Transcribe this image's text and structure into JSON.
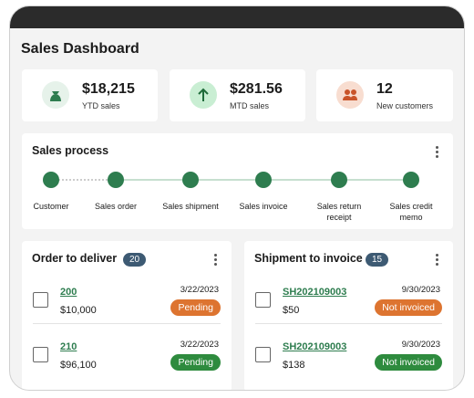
{
  "header": {
    "title": "Sales Dashboard"
  },
  "kpis": [
    {
      "value": "$18,215",
      "label": "YTD sales"
    },
    {
      "value": "$281.56",
      "label": "MTD sales"
    },
    {
      "value": "12",
      "label": "New customers"
    }
  ],
  "sales_process": {
    "title": "Sales process",
    "steps": [
      "Customer",
      "Sales order",
      "Sales shipment",
      "Sales invoice",
      "Sales return receipt",
      "Sales credit memo"
    ]
  },
  "orders": {
    "title": "Order to deliver",
    "count": "20",
    "rows": [
      {
        "id": "200",
        "amount": "$10,000",
        "date": "3/22/2023",
        "status": "Pending"
      },
      {
        "id": "210",
        "amount": "$96,100",
        "date": "3/22/2023",
        "status": "Pending"
      }
    ]
  },
  "shipments": {
    "title": "Shipment to invoice",
    "count": "15",
    "rows": [
      {
        "id": "SH202109003",
        "amount": "$50",
        "date": "9/30/2023",
        "status": "Not invoiced"
      },
      {
        "id": "SH202109003",
        "amount": "$138",
        "date": "9/30/2023",
        "status": "Not invoiced"
      }
    ]
  }
}
